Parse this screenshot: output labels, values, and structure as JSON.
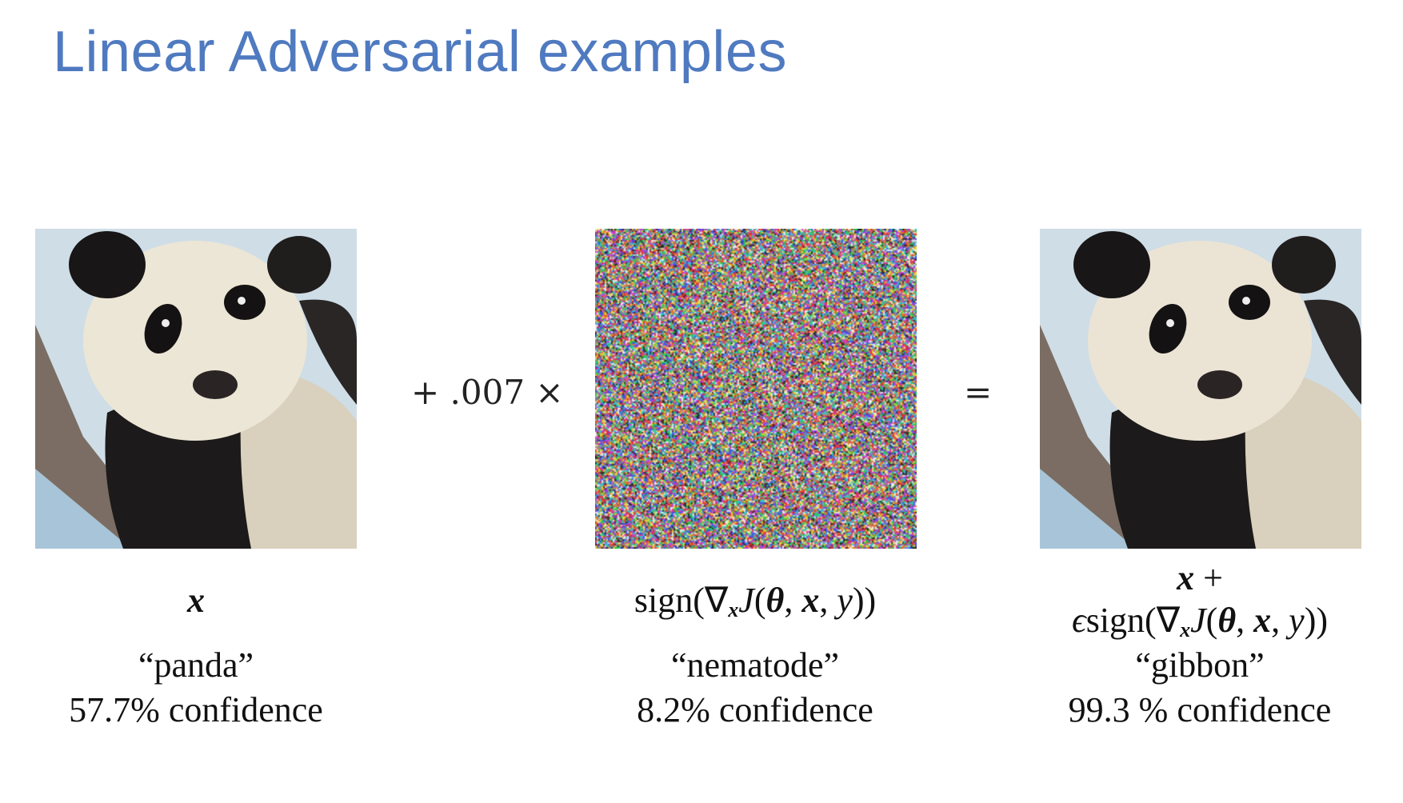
{
  "slide": {
    "title": "Linear Adversarial examples"
  },
  "operators": {
    "plus_scale": "+ .007 ×",
    "equals": "="
  },
  "panels": [
    {
      "image_icon": "panda-photo",
      "formula_x": "x",
      "class_label": "“panda”",
      "confidence": "57.7% confidence"
    },
    {
      "image_icon": "noise-pattern",
      "formula_sign": "sign(",
      "formula_nabla": "∇",
      "formula_sub": "x",
      "formula_J": "J",
      "formula_paren_open": "(",
      "formula_theta": "θ",
      "formula_comma1": ", ",
      "formula_x": "x",
      "formula_comma2": ", ",
      "formula_y": "y",
      "formula_close": "))",
      "class_label": "“nematode”",
      "confidence": "8.2% confidence"
    },
    {
      "image_icon": "panda-photo",
      "formula_line1_x": "x",
      "formula_line1_plus": " +",
      "formula_eps": "ϵ",
      "formula_sign": "sign(",
      "formula_nabla": "∇",
      "formula_sub": "x",
      "formula_J": "J",
      "formula_paren_open": "(",
      "formula_theta": "θ",
      "formula_comma1": ", ",
      "formula_x": "x",
      "formula_comma2": ", ",
      "formula_y": "y",
      "formula_close": "))",
      "class_label": "“gibbon”",
      "confidence": "99.3 % confidence"
    }
  ]
}
